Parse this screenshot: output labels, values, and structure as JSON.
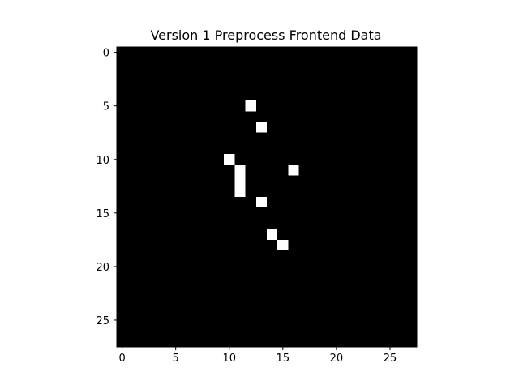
{
  "chart_data": {
    "type": "heatmap",
    "title": "Version 1 Preprocess Frontend Data",
    "xlabel": "",
    "ylabel": "",
    "grid": false,
    "colormap": "gray",
    "rows": 28,
    "cols": 28,
    "xlim": [
      -0.5,
      27.5
    ],
    "ylim": [
      27.5,
      -0.5
    ],
    "x_ticks": [
      0,
      5,
      10,
      15,
      20,
      25
    ],
    "x_tick_labels": [
      "0",
      "5",
      "10",
      "15",
      "20",
      "25"
    ],
    "y_ticks": [
      0,
      5,
      10,
      15,
      20,
      25
    ],
    "y_tick_labels": [
      "0",
      "5",
      "10",
      "15",
      "20",
      "25"
    ],
    "background_value": 0,
    "colors": {
      "zero": "#000000",
      "one": "#ffffff",
      "axes_frame": "#000000"
    },
    "nonzero_cells": [
      {
        "row": 5,
        "col": 12,
        "value": 1
      },
      {
        "row": 7,
        "col": 13,
        "value": 1
      },
      {
        "row": 10,
        "col": 10,
        "value": 1
      },
      {
        "row": 11,
        "col": 11,
        "value": 1
      },
      {
        "row": 11,
        "col": 16,
        "value": 1
      },
      {
        "row": 12,
        "col": 11,
        "value": 1
      },
      {
        "row": 13,
        "col": 11,
        "value": 1
      },
      {
        "row": 14,
        "col": 13,
        "value": 1
      },
      {
        "row": 17,
        "col": 14,
        "value": 1
      },
      {
        "row": 18,
        "col": 15,
        "value": 1
      }
    ]
  }
}
